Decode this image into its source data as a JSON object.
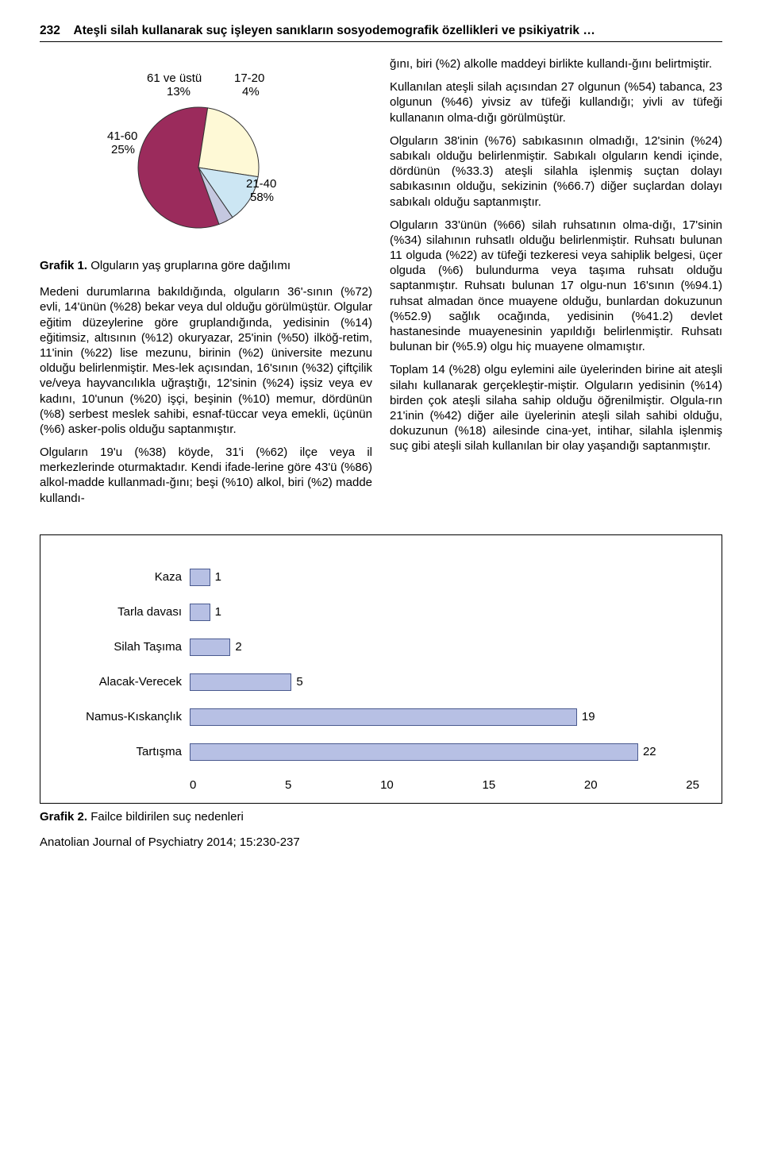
{
  "header": {
    "page_number": "232",
    "title": "Ateşli silah kullanarak suç işleyen sanıkların sosyodemografik özellikleri ve psikiyatrik …"
  },
  "pie_chart": {
    "type": "pie",
    "slices": [
      {
        "label": "21-40",
        "pct_label": "58%",
        "value": 58,
        "color": "#9b2b5c"
      },
      {
        "label": "41-60",
        "pct_label": "25%",
        "value": 25,
        "color": "#fef9d6"
      },
      {
        "label": "61 ve üstü",
        "pct_label": "13%",
        "value": 13,
        "color": "#cce6f3"
      },
      {
        "label": "17-20",
        "pct_label": "4%",
        "value": 4,
        "color": "#c5c8e0"
      }
    ],
    "stroke": "#333",
    "caption_prefix": "Grafik 1.",
    "caption": "Olguların yaş gruplarına göre dağılımı"
  },
  "left_paragraphs": [
    "Medeni durumlarına bakıldığında, olguların 36'-sının (%72) evli, 14'ünün (%28) bekar veya dul olduğu görülmüştür. Olgular eğitim düzeylerine göre gruplandığında, yedisinin (%14) eğitimsiz, altısının (%12) okuryazar, 25'inin (%50) ilköğ-retim, 11'inin (%22) lise mezunu, birinin (%2) üniversite mezunu olduğu belirlenmiştir. Mes-lek açısından, 16'sının (%32) çiftçilik ve/veya hayvancılıkla uğraştığı, 12'sinin (%24) işsiz veya ev kadını, 10'unun (%20) işçi, beşinin (%10) memur, dördünün (%8) serbest meslek sahibi, esnaf-tüccar veya emekli, üçünün (%6) asker-polis olduğu saptanmıştır.",
    "Olguların 19'u (%38) köyde, 31'i (%62) ilçe veya il merkezlerinde oturmaktadır. Kendi ifade-lerine göre 43'ü (%86) alkol-madde kullanmadı-ğını; beşi (%10) alkol, biri (%2) madde kullandı-"
  ],
  "right_paragraphs": [
    "ğını, biri (%2) alkolle maddeyi birlikte kullandı-ğını belirtmiştir.",
    "Kullanılan ateşli silah açısından 27 olgunun (%54) tabanca, 23 olgunun (%46) yivsiz av tüfeği kullandığı; yivli av tüfeği kullananın olma-dığı görülmüştür.",
    "Olguların 38'inin (%76) sabıkasının olmadığı, 12'sinin (%24) sabıkalı olduğu belirlenmiştir. Sabıkalı olguların kendi içinde, dördünün (%33.3) ateşli silahla işlenmiş suçtan dolayı sabıkasının olduğu, sekizinin (%66.7) diğer suçlardan dolayı sabıkalı olduğu saptanmıştır.",
    "Olguların 33'ünün (%66) silah ruhsatının olma-dığı, 17'sinin (%34) silahının ruhsatlı olduğu belirlenmiştir. Ruhsatı bulunan 11 olguda (%22) av tüfeği tezkeresi veya sahiplik belgesi, üçer olguda (%6) bulundurma veya taşıma ruhsatı olduğu saptanmıştır. Ruhsatı bulunan 17 olgu-nun 16'sının (%94.1) ruhsat almadan önce muayene olduğu, bunlardan dokuzunun (%52.9) sağlık ocağında, yedisinin (%41.2) devlet hastanesinde muayenesinin yapıldığı belirlenmiştir. Ruhsatı bulunan bir (%5.9) olgu hiç muayene olmamıştır.",
    "Toplam 14 (%28) olgu eylemini aile üyelerinden birine ait ateşli silahı kullanarak gerçekleştir-miştir. Olguların yedisinin (%14) birden çok ateşli silaha sahip olduğu öğrenilmiştir. Olgula-rın 21'inin (%42) diğer aile üyelerinin ateşli silah sahibi olduğu, dokuzunun (%18) ailesinde cina-yet, intihar, silahla işlenmiş suç gibi ateşli silah kullanılan bir olay yaşandığı saptanmıştır."
  ],
  "bar_chart": {
    "type": "bar",
    "xmax": 25,
    "ticks": [
      "0",
      "5",
      "10",
      "15",
      "20",
      "25"
    ],
    "bar_fill": "#b7c0e4",
    "bar_stroke": "#4a5a8f",
    "rows": [
      {
        "label": "Kaza",
        "value": 1
      },
      {
        "label": "Tarla davası",
        "value": 1
      },
      {
        "label": "Silah Taşıma",
        "value": 2
      },
      {
        "label": "Alacak-Verecek",
        "value": 5
      },
      {
        "label": "Namus-Kıskançlık",
        "value": 19
      },
      {
        "label": "Tartışma",
        "value": 22
      }
    ],
    "caption_prefix": "Grafik 2.",
    "caption": "Failce bildirilen suç nedenleri"
  },
  "journal_line": "Anatolian Journal of Psychiatry 2014; 15:230-237"
}
